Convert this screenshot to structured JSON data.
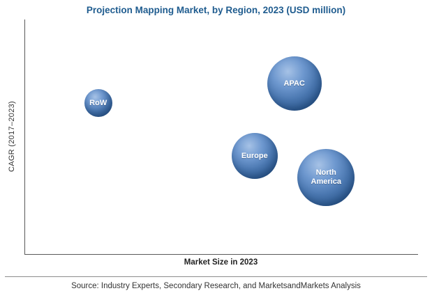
{
  "title": "Projection Mapping Market, by Region, 2023 (USD million)",
  "x_axis_label": "Market Size in 2023",
  "y_axis_label": "CAGR (2017–2023)",
  "source": "Source: Industry Experts, Secondary Research, and MarketsandMarkets Analysis",
  "colors": {
    "title": "#1f5c8f",
    "bubble_base": "#4a77b0",
    "bubble_highlight": "#a6c2e6",
    "bubble_edge": "#27507f",
    "axis": "#595959",
    "divider": "#8c8c8c"
  },
  "chart_data": {
    "type": "scatter",
    "subtype": "bubble",
    "title": "Projection Mapping Market, by Region, 2023 (USD million)",
    "xlabel": "Market Size in 2023",
    "ylabel": "CAGR (2017–2023)",
    "axes_numeric": false,
    "grid": false,
    "legend": "none",
    "points": [
      {
        "label": "RoW",
        "x_pct": 18.6,
        "y_pct": 35.6,
        "size": 40,
        "market_size_relative": "smallest",
        "cagr_relative": "medium-high"
      },
      {
        "label": "APAC",
        "x_pct": 68.5,
        "y_pct": 27.3,
        "size": 78,
        "market_size_relative": "large",
        "cagr_relative": "highest"
      },
      {
        "label": "Europe",
        "x_pct": 58.4,
        "y_pct": 58.2,
        "size": 66,
        "market_size_relative": "medium",
        "cagr_relative": "medium"
      },
      {
        "label": "North America",
        "x_pct": 76.6,
        "y_pct": 67.4,
        "size": 82,
        "market_size_relative": "largest",
        "cagr_relative": "lowest"
      }
    ]
  }
}
